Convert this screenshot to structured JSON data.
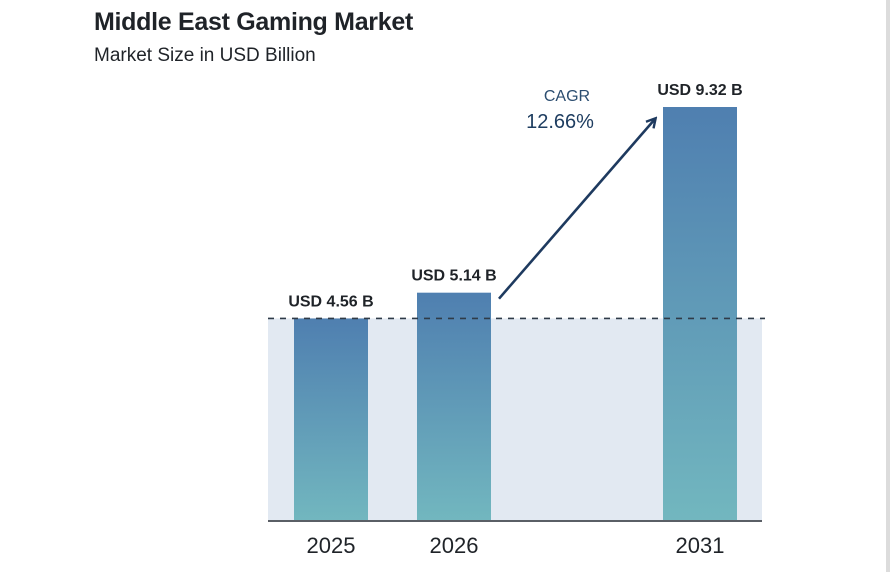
{
  "title": "Middle East Gaming Market",
  "subtitle": "Market Size in USD Billion",
  "chart_data": {
    "type": "bar",
    "title": "Middle East Gaming Market",
    "subtitle": "Market Size in USD Billion",
    "categories": [
      "2025",
      "2026",
      "2031"
    ],
    "values": [
      4.56,
      5.14,
      9.32
    ],
    "data_labels": [
      "USD 4.56 B",
      "USD 5.14 B",
      "USD 9.32 B"
    ],
    "reference_line": 4.56,
    "annotation": {
      "label": "CAGR",
      "value": "12.66%"
    },
    "ylim": [
      0,
      10
    ],
    "grid": false,
    "colors": {
      "bar_top": "#4f7fb0",
      "bar_bottom": "#72b7bf",
      "band": "#e2e9f2",
      "arrow": "#1e3a5f"
    }
  }
}
